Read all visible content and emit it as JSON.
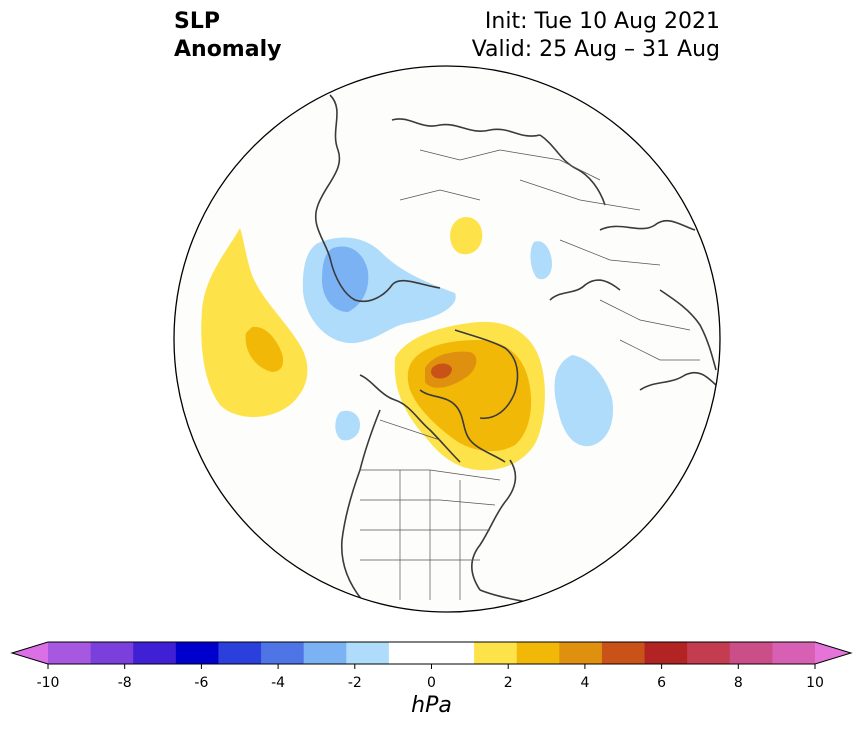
{
  "header": {
    "title_line1": "SLP",
    "title_line2": "Anomaly",
    "init_line": "Init: Tue 10 Aug 2021",
    "valid_line": "Valid: 25 Aug – 31 Aug"
  },
  "map": {
    "projection": "north polar stereographic",
    "region": "Northern Hemisphere (North America / Arctic)"
  },
  "colorbar": {
    "unit": "hPa",
    "min": -10,
    "max": 10,
    "step": 1,
    "tick_labels": [
      "-10",
      "-8",
      "-6",
      "-4",
      "-2",
      "0",
      "2",
      "4",
      "6",
      "8",
      "10"
    ],
    "colors": [
      "#da6fe6",
      "#a658e0",
      "#7b3fdc",
      "#4020d4",
      "#0000cd",
      "#2a3fdc",
      "#4f74e6",
      "#7ab2f4",
      "#aedcfa",
      "#ffffff",
      "#ffffff",
      "#fde24a",
      "#f2b807",
      "#e0900f",
      "#c85218",
      "#b22424",
      "#c43c50",
      "#cc4e88",
      "#d860b4",
      "#e474d8"
    ]
  },
  "anomalies": [
    {
      "name": "north-pacific-positive",
      "level": "1-3 hPa",
      "color": "#fde24a"
    },
    {
      "name": "north-pacific-positive-core",
      "level": "2-3 hPa",
      "color": "#f2b807"
    },
    {
      "name": "greenland-canadian-arctic-positive",
      "level": "1-4 hPa",
      "color": "#f2b807"
    },
    {
      "name": "greenland-positive-core",
      "level": "3-5 hPa",
      "color": "#c85218"
    },
    {
      "name": "siberia-negative",
      "level": "-1 to -3 hPa",
      "color": "#7ab2f4"
    },
    {
      "name": "north-atlantic-negative",
      "level": "-1 to -2 hPa",
      "color": "#aedcfa"
    },
    {
      "name": "alaska-negative",
      "level": "-1 to -2 hPa",
      "color": "#aedcfa"
    },
    {
      "name": "kara-sea-positive",
      "level": "1-2 hPa",
      "color": "#fde24a"
    }
  ]
}
